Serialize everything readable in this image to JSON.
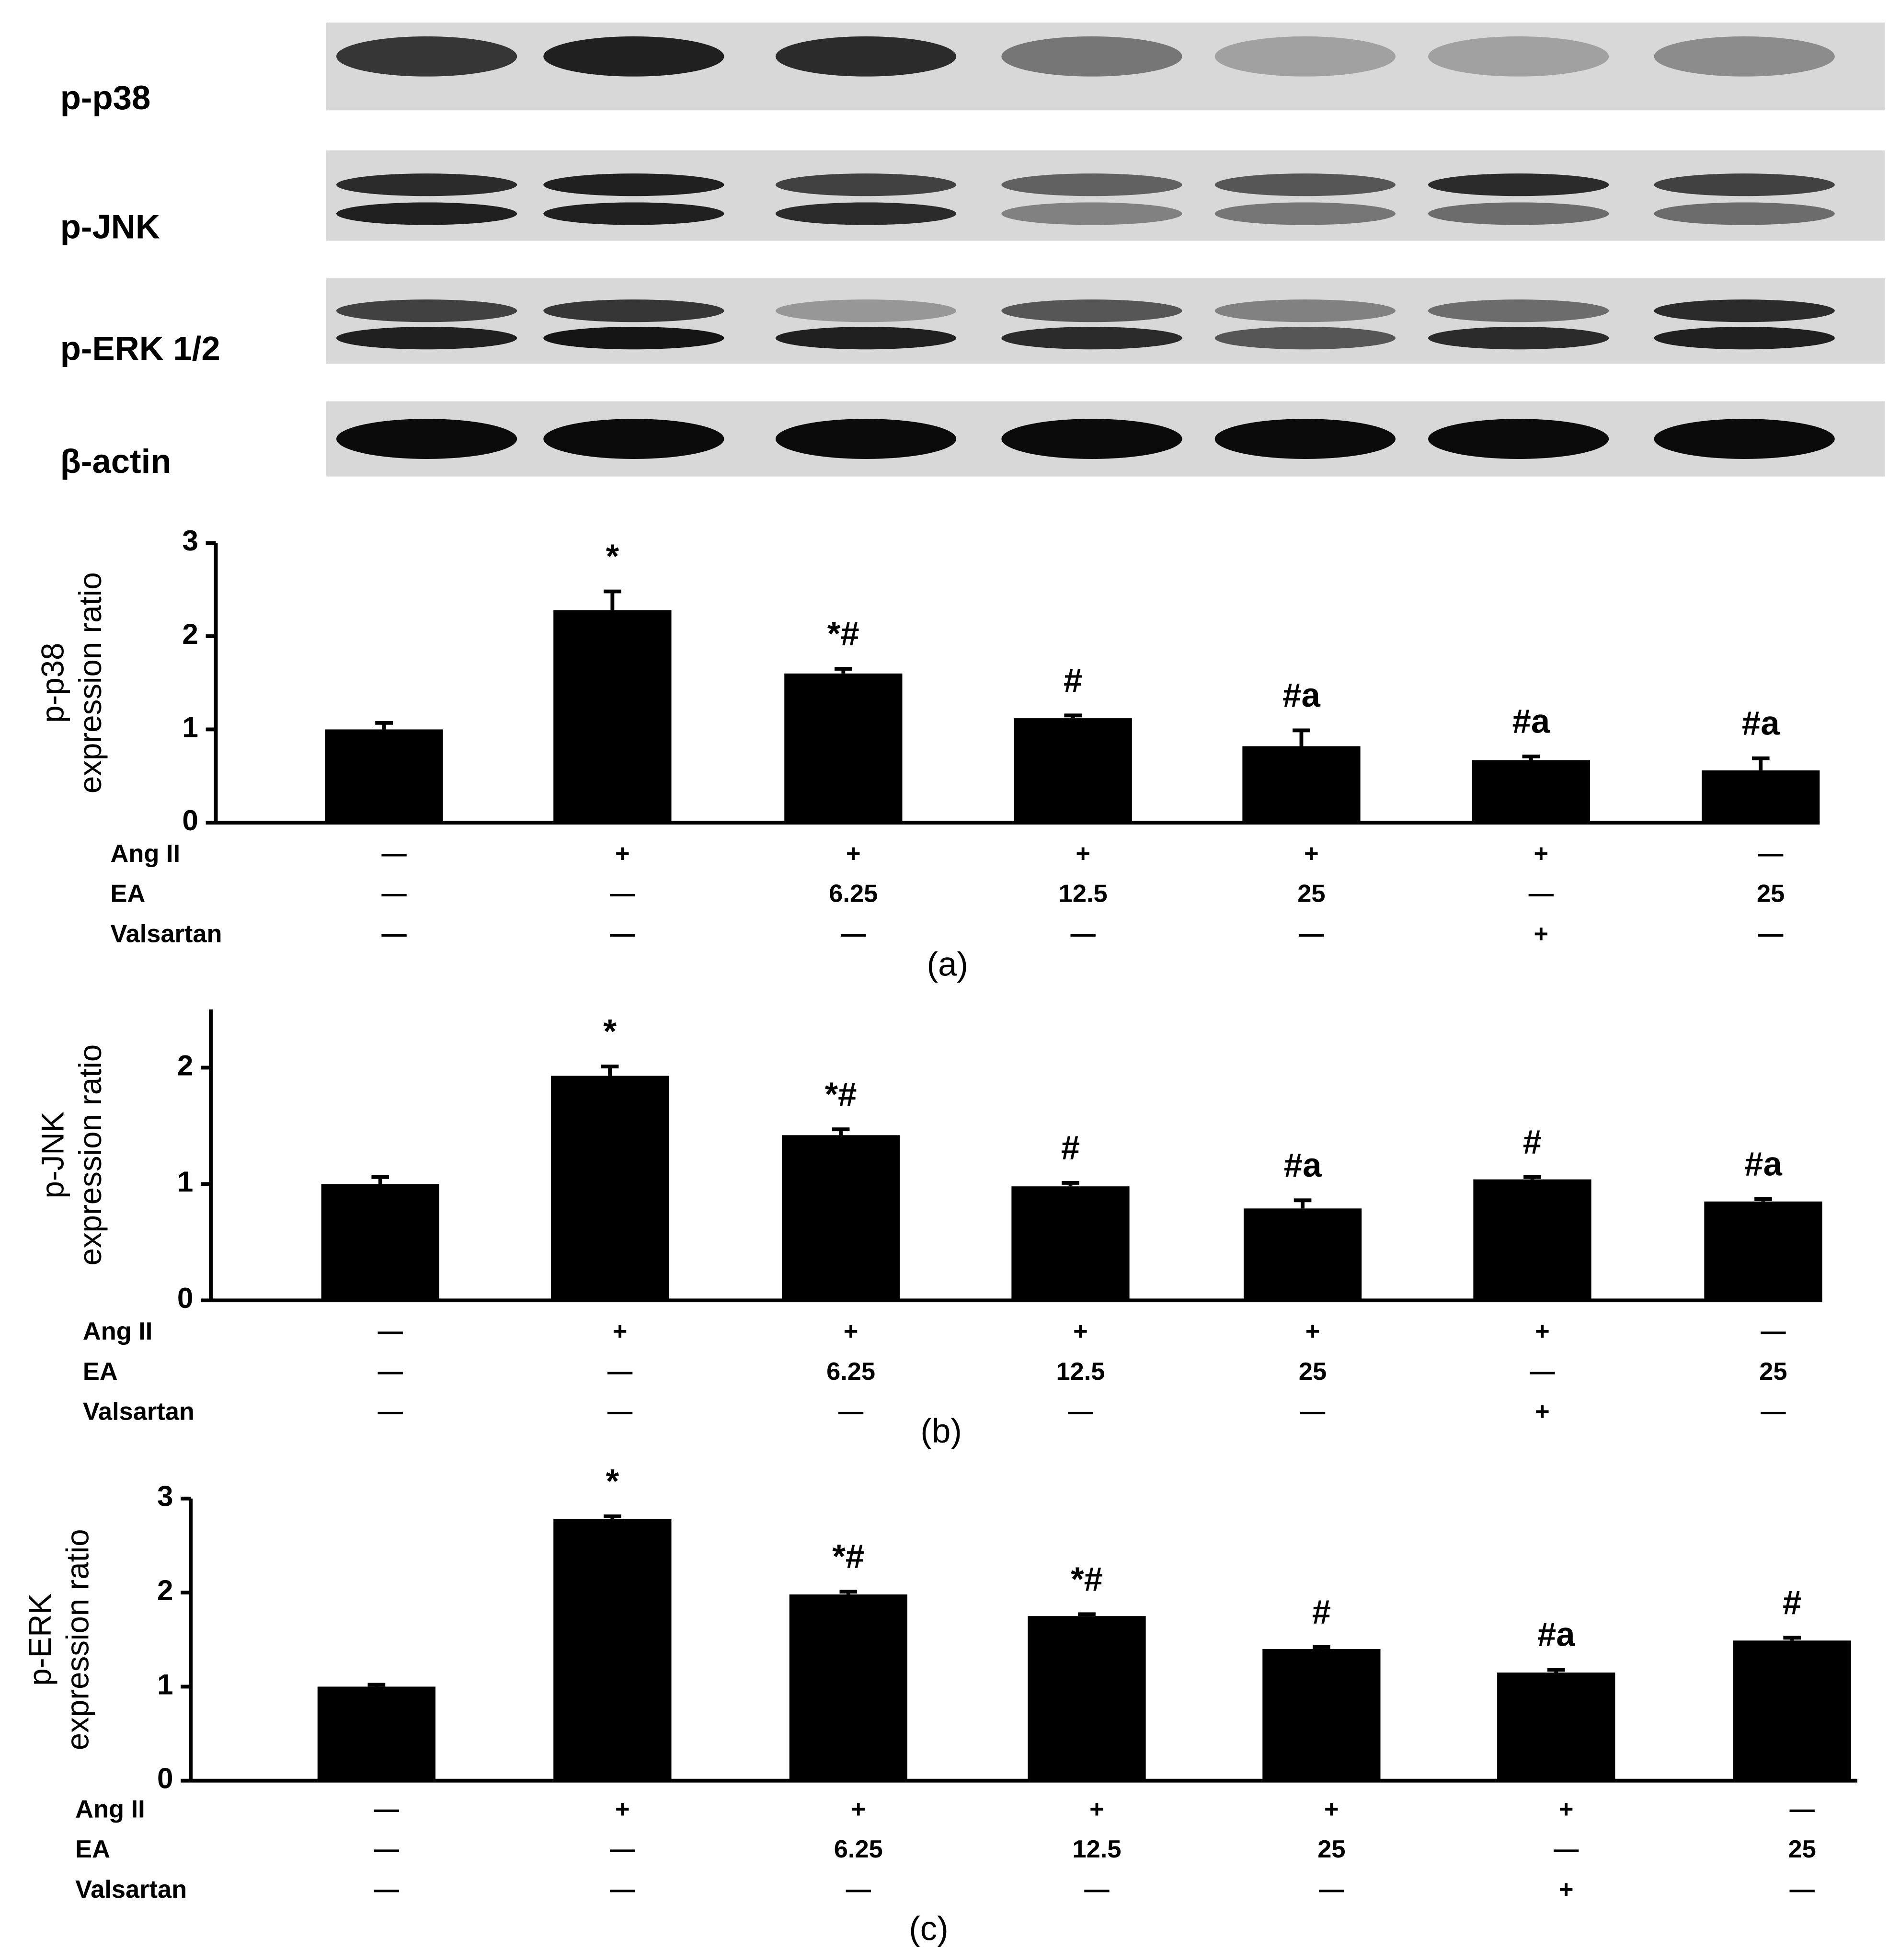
{
  "blot": {
    "labels": [
      "p-p38",
      "p-JNK",
      "p-ERK 1/2",
      "β-actin"
    ]
  },
  "chart_data": [
    {
      "type": "bar",
      "ylabel": [
        "p-p38",
        "expression ratio"
      ],
      "panel_label": "(a)",
      "color": "#000000",
      "ylim": [
        0,
        3
      ],
      "yticks": [
        0,
        1,
        2,
        3
      ],
      "values": [
        1.0,
        2.28,
        1.6,
        1.12,
        0.82,
        0.67,
        0.56
      ],
      "errors": [
        0.07,
        0.2,
        0.05,
        0.03,
        0.17,
        0.04,
        0.13
      ],
      "annotations": [
        null,
        "*",
        "*#",
        "#",
        "#a",
        "#a",
        "#a"
      ],
      "conditions": [
        {
          "name": "Ang II",
          "values": [
            "—",
            "+",
            "+",
            "+",
            "+",
            "+",
            "—"
          ]
        },
        {
          "name": "EA",
          "values": [
            "—",
            "—",
            "6.25",
            "12.5",
            "25",
            "—",
            "25"
          ]
        },
        {
          "name": "Valsartan",
          "values": [
            "—",
            "—",
            "—",
            "—",
            "—",
            "+",
            "—"
          ]
        }
      ]
    },
    {
      "type": "bar",
      "ylabel": [
        "p-JNK",
        "expression ratio"
      ],
      "panel_label": "(b)",
      "color": "#000000",
      "ylim": [
        0,
        2.5
      ],
      "yticks": [
        0,
        1,
        2
      ],
      "values": [
        1.0,
        1.93,
        1.42,
        0.98,
        0.79,
        1.04,
        0.85
      ],
      "errors": [
        0.06,
        0.08,
        0.05,
        0.03,
        0.07,
        0.02,
        0.02
      ],
      "annotations": [
        null,
        "*",
        "*#",
        "#",
        "#a",
        "#",
        "#a"
      ],
      "conditions": [
        {
          "name": "Ang II",
          "values": [
            "—",
            "+",
            "+",
            "+",
            "+",
            "+",
            "—"
          ]
        },
        {
          "name": "EA",
          "values": [
            "—",
            "—",
            "6.25",
            "12.5",
            "25",
            "—",
            "25"
          ]
        },
        {
          "name": "Valsartan",
          "values": [
            "—",
            "—",
            "—",
            "—",
            "—",
            "+",
            "—"
          ]
        }
      ]
    },
    {
      "type": "bar",
      "ylabel": [
        "p-ERK",
        "expression ratio"
      ],
      "panel_label": "(c)",
      "color": "#000000",
      "ylim": [
        0,
        3
      ],
      "yticks": [
        0,
        1,
        2,
        3
      ],
      "values": [
        1.0,
        2.78,
        1.98,
        1.75,
        1.4,
        1.15,
        1.49
      ],
      "errors": [
        0.02,
        0.03,
        0.03,
        0.02,
        0.02,
        0.03,
        0.03
      ],
      "annotations": [
        null,
        "*",
        "*#",
        "*#",
        "#",
        "#a",
        "#"
      ],
      "conditions": [
        {
          "name": "Ang II",
          "values": [
            "—",
            "+",
            "+",
            "+",
            "+",
            "+",
            "—"
          ]
        },
        {
          "name": "EA",
          "values": [
            "—",
            "—",
            "6.25",
            "12.5",
            "25",
            "—",
            "25"
          ]
        },
        {
          "name": "Valsartan",
          "values": [
            "—",
            "—",
            "—",
            "—",
            "—",
            "+",
            "—"
          ]
        }
      ]
    }
  ]
}
